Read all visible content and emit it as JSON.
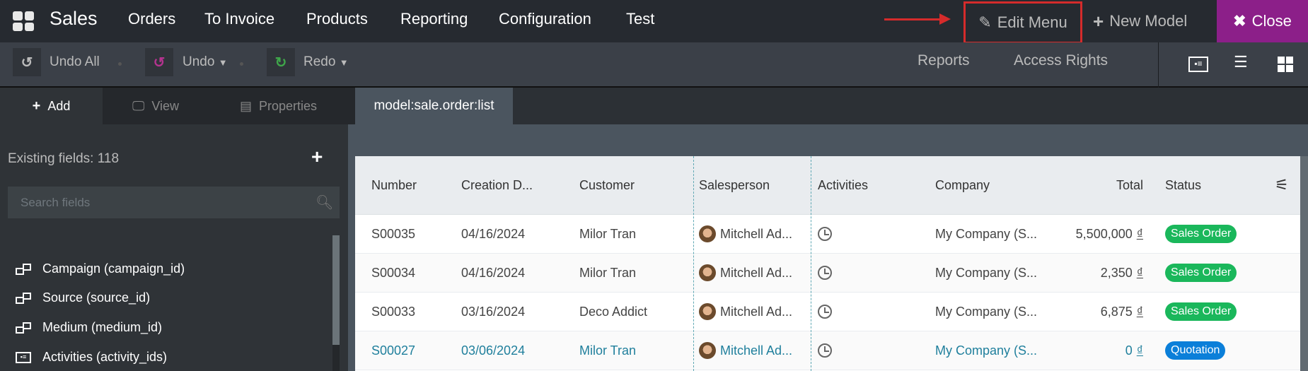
{
  "topbar": {
    "brand": "Sales",
    "menu": [
      "Orders",
      "To Invoice",
      "Products",
      "Reporting",
      "Configuration",
      "Test"
    ],
    "edit_menu": "Edit Menu",
    "new_model": "New Model",
    "close": "Close",
    "close_color": "#8c1f89",
    "highlight_color": "#d52b2b"
  },
  "toolbar": {
    "undo_all": "Undo All",
    "undo": "Undo",
    "redo": "Redo",
    "reports": "Reports",
    "access_rights": "Access Rights",
    "view_icons": [
      "contact-card-icon",
      "list-icon",
      "kanban-icon"
    ]
  },
  "tabs": {
    "add": "Add",
    "view": "View",
    "properties": "Properties",
    "view_name": "model:sale.order:list"
  },
  "sidebar": {
    "existing_fields": "Existing fields: 118",
    "search_placeholder": "Search fields",
    "fields": [
      {
        "label": "Campaign (campaign_id)",
        "icon": "relation-icon"
      },
      {
        "label": "Source (source_id)",
        "icon": "relation-icon"
      },
      {
        "label": "Medium (medium_id)",
        "icon": "relation-icon"
      },
      {
        "label": "Activities (activity_ids)",
        "icon": "contact-card-icon"
      }
    ]
  },
  "table": {
    "columns": [
      "Number",
      "Creation D...",
      "Customer",
      "Salesperson",
      "Activities",
      "Company",
      "Total",
      "Status"
    ],
    "rows": [
      {
        "number": "S00035",
        "date": "04/16/2024",
        "customer": "Milor Tran",
        "salesperson": "Mitchell Ad...",
        "company": "My Company (S...",
        "total": "5,500,000",
        "currency": "₫",
        "status": "Sales Order",
        "status_color": "#1ab75b"
      },
      {
        "number": "S00034",
        "date": "04/16/2024",
        "customer": "Milor Tran",
        "salesperson": "Mitchell Ad...",
        "company": "My Company (S...",
        "total": "2,350",
        "currency": "₫",
        "status": "Sales Order",
        "status_color": "#1ab75b"
      },
      {
        "number": "S00033",
        "date": "03/16/2024",
        "customer": "Deco Addict",
        "salesperson": "Mitchell Ad...",
        "company": "My Company (S...",
        "total": "6,875",
        "currency": "₫",
        "status": "Sales Order",
        "status_color": "#1ab75b"
      },
      {
        "number": "S00027",
        "date": "03/06/2024",
        "customer": "Milor Tran",
        "salesperson": "Mitchell Ad...",
        "company": "My Company (S...",
        "total": "0",
        "currency": "₫",
        "status": "Quotation",
        "status_color": "#0b7fd9"
      }
    ]
  }
}
